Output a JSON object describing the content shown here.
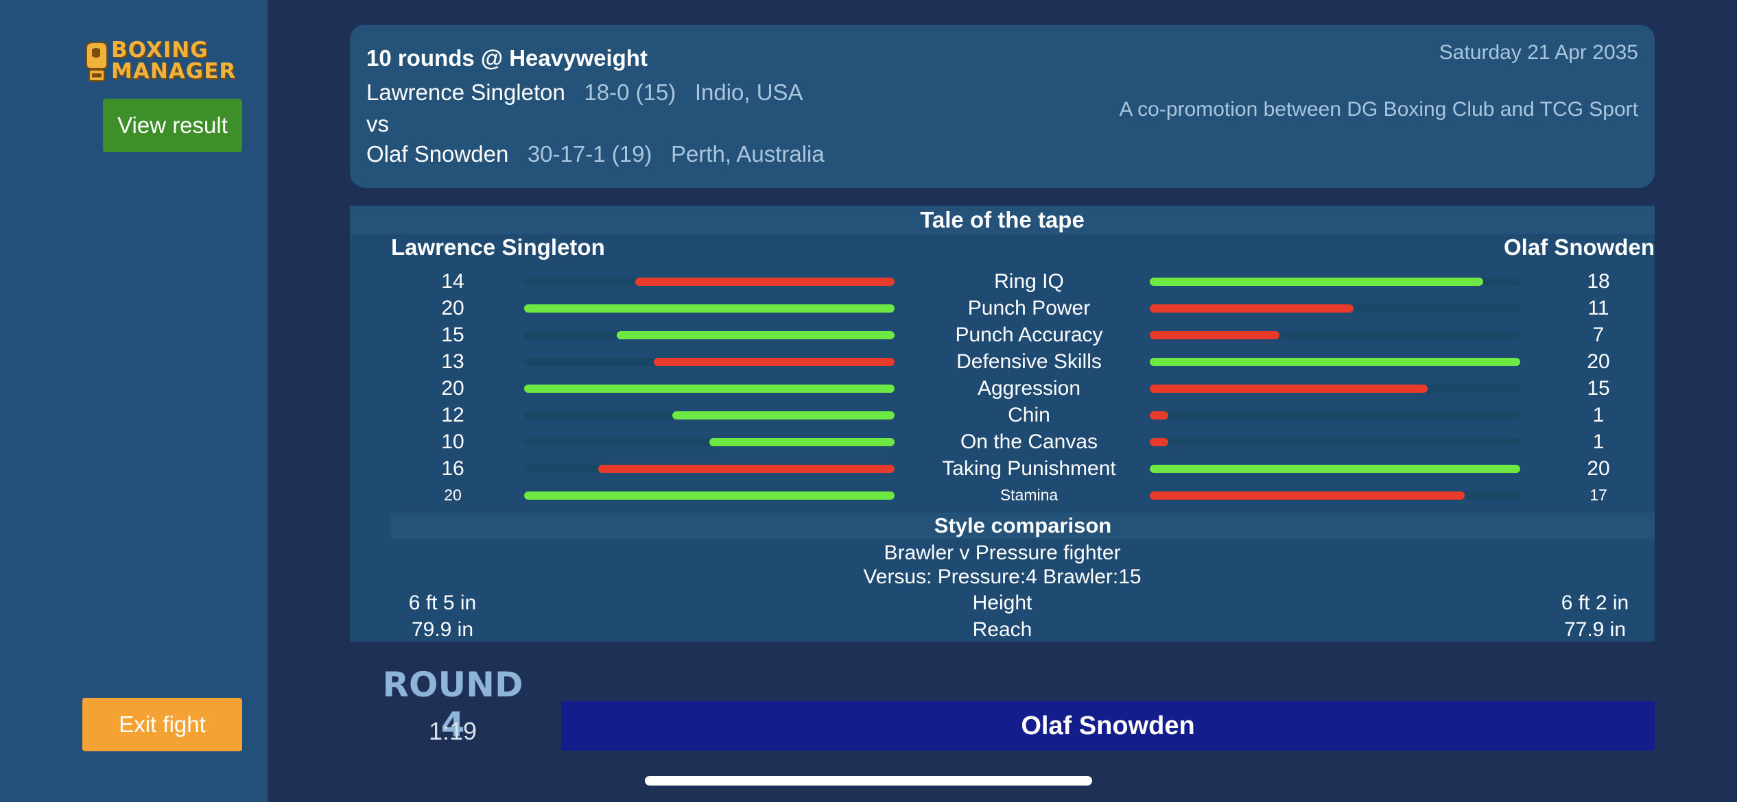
{
  "sidebar": {
    "logo_top": "BOXING",
    "logo_bottom": "MANAGER",
    "view_result_label": "View result",
    "exit_fight_label": "Exit fight"
  },
  "bout": {
    "title": "10 rounds @ Heavyweight",
    "date": "Saturday 21 Apr 2035",
    "promo": "A co-promotion between DG Boxing Club and TCG Sport",
    "vs": "vs",
    "fighter1": {
      "name": "Lawrence Singleton",
      "record": "18-0 (15)",
      "location": "Indio, USA"
    },
    "fighter2": {
      "name": "Olaf Snowden",
      "record": "30-17-1 (19)",
      "location": "Perth, Australia"
    }
  },
  "tape": {
    "title": "Tale of the tape",
    "left_name": "Lawrence Singleton",
    "right_name": "Olaf Snowden",
    "stats": [
      {
        "label": "Ring IQ",
        "left": "14",
        "right": "18",
        "left_pct": 70,
        "right_pct": 90,
        "left_color": "#e83b2b",
        "right_color": "#6ee843"
      },
      {
        "label": "Punch Power",
        "left": "20",
        "right": "11",
        "left_pct": 100,
        "right_pct": 55,
        "left_color": "#6ee843",
        "right_color": "#e83b2b"
      },
      {
        "label": "Punch Accuracy",
        "left": "15",
        "right": "7",
        "left_pct": 75,
        "right_pct": 35,
        "left_color": "#6ee843",
        "right_color": "#e83b2b"
      },
      {
        "label": "Defensive Skills",
        "left": "13",
        "right": "20",
        "left_pct": 65,
        "right_pct": 100,
        "left_color": "#e83b2b",
        "right_color": "#6ee843"
      },
      {
        "label": "Aggression",
        "left": "20",
        "right": "15",
        "left_pct": 100,
        "right_pct": 75,
        "left_color": "#6ee843",
        "right_color": "#e83b2b"
      },
      {
        "label": "Chin",
        "left": "12",
        "right": "1",
        "left_pct": 60,
        "right_pct": 5,
        "left_color": "#6ee843",
        "right_color": "#e83b2b"
      },
      {
        "label": "On the Canvas",
        "left": "10",
        "right": "1",
        "left_pct": 50,
        "right_pct": 5,
        "left_color": "#6ee843",
        "right_color": "#e83b2b"
      },
      {
        "label": "Taking Punishment",
        "left": "16",
        "right": "20",
        "left_pct": 80,
        "right_pct": 100,
        "left_color": "#e83b2b",
        "right_color": "#6ee843"
      },
      {
        "label": "Stamina",
        "left": "20",
        "right": "17",
        "left_pct": 100,
        "right_pct": 85,
        "left_color": "#6ee843",
        "right_color": "#e83b2b"
      }
    ],
    "style_title": "Style comparison",
    "style_matchup": "Brawler v Pressure fighter",
    "style_versus": "Versus: Pressure:4   Brawler:15",
    "height_label": "Height",
    "height_left": "6 ft 5 in",
    "height_right": "6 ft 2 in",
    "reach_label": "Reach",
    "reach_left": "79.9 in",
    "reach_right": "77.9 in"
  },
  "round": {
    "label": "ROUND 4",
    "clock": "1:19",
    "active_fighter": "Olaf Snowden"
  }
}
